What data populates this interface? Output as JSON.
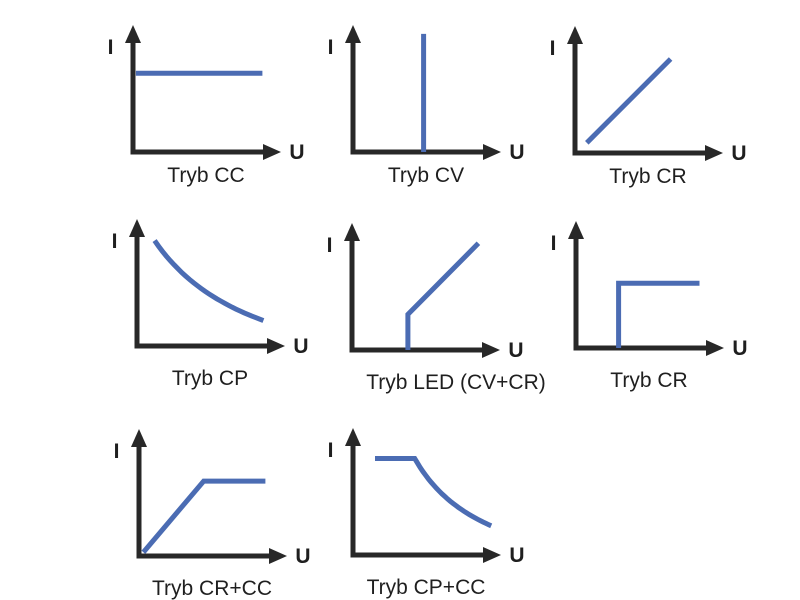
{
  "figure": {
    "background": "#ffffff",
    "curve_color": "#4b6cb3",
    "axis_color": "#282828",
    "text_color": "#1f1f1f"
  },
  "axis": {
    "x_label": "U",
    "y_label": "I"
  },
  "charts": [
    {
      "id": "tryb-cc",
      "label": "Tryb CC",
      "type": "line",
      "segments": [
        {
          "kind": "polyline",
          "points": [
            [
              0.02,
              0.62
            ],
            [
              0.88,
              0.62
            ]
          ]
        }
      ]
    },
    {
      "id": "tryb-cv",
      "label": "Tryb CV",
      "type": "line",
      "segments": [
        {
          "kind": "polyline",
          "points": [
            [
              0.48,
              0.0
            ],
            [
              0.48,
              0.93
            ]
          ]
        }
      ]
    },
    {
      "id": "tryb-cr",
      "label": "Tryb CR",
      "type": "line",
      "segments": [
        {
          "kind": "polyline",
          "points": [
            [
              0.08,
              0.08
            ],
            [
              0.65,
              0.74
            ]
          ]
        }
      ]
    },
    {
      "id": "tryb-cp",
      "label": "Tryb CP",
      "type": "line",
      "segments": [
        {
          "kind": "hyperbola",
          "from": [
            0.12,
            0.83
          ],
          "to": [
            0.86,
            0.2
          ]
        }
      ]
    },
    {
      "id": "tryb-led-cv-cr",
      "label": "Tryb LED (CV+CR)",
      "type": "line",
      "segments": [
        {
          "kind": "polyline",
          "points": [
            [
              0.38,
              0.0
            ],
            [
              0.38,
              0.28
            ],
            [
              0.86,
              0.84
            ]
          ]
        }
      ]
    },
    {
      "id": "tryb-cr-step",
      "label": "Tryb CR",
      "type": "line",
      "segments": [
        {
          "kind": "polyline",
          "points": [
            [
              0.29,
              0.0
            ],
            [
              0.29,
              0.51
            ],
            [
              0.84,
              0.51
            ]
          ]
        }
      ]
    },
    {
      "id": "tryb-cr-cc",
      "label": "Tryb CR+CC",
      "type": "line",
      "segments": [
        {
          "kind": "polyline",
          "points": [
            [
              0.03,
              0.03
            ],
            [
              0.44,
              0.59
            ],
            [
              0.86,
              0.59
            ]
          ]
        }
      ]
    },
    {
      "id": "tryb-cp-cc",
      "label": "Tryb CP+CC",
      "type": "line",
      "segments": [
        {
          "kind": "polyline",
          "points": [
            [
              0.15,
              0.76
            ],
            [
              0.42,
              0.76
            ]
          ]
        },
        {
          "kind": "hyperbola",
          "from": [
            0.42,
            0.76
          ],
          "to": [
            0.94,
            0.23
          ]
        }
      ]
    }
  ]
}
